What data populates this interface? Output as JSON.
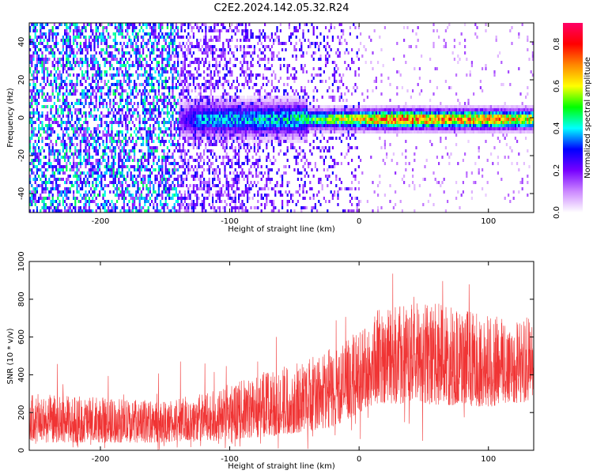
{
  "title": "C2E2.2024.142.05.32.R24",
  "colors": {
    "snr_line": "#f03434",
    "axis": "#000000",
    "colormap": [
      "#ffffff",
      "#cc88ff",
      "#7700ff",
      "#0000ff",
      "#00ffff",
      "#00ff00",
      "#ffff00",
      "#ff8800",
      "#ff0000",
      "#ff0066"
    ]
  },
  "chart_data": [
    {
      "type": "heatmap",
      "xlabel": "Height of straight line (km)",
      "ylabel": "Frequency (Hz)",
      "xlim": [
        -255,
        135
      ],
      "ylim": [
        -50,
        50
      ],
      "xticks": [
        -200,
        -100,
        0,
        100
      ],
      "yticks": [
        -40,
        -20,
        0,
        20,
        40
      ],
      "xtick_labels": [
        "-200",
        "-100",
        "0",
        "100"
      ],
      "ytick_labels": [
        "-40",
        "-20",
        "0",
        "20",
        "40"
      ],
      "colorbar": {
        "label": "Normalized spectral amplitude",
        "range": [
          0,
          0.9
        ],
        "ticks": [
          0.0,
          0.2,
          0.4,
          0.6,
          0.8
        ],
        "tick_labels": [
          "0.0",
          "0.2",
          "0.4",
          "0.6",
          "0.8"
        ]
      },
      "signal_band": {
        "center_freq": 0,
        "x_start": -140,
        "amplitude_profile": [
          {
            "x": -140,
            "a": 0.15
          },
          {
            "x": -125,
            "a": 0.35
          },
          {
            "x": -100,
            "a": 0.38
          },
          {
            "x": -60,
            "a": 0.4
          },
          {
            "x": -40,
            "a": 0.45
          },
          {
            "x": -20,
            "a": 0.55
          },
          {
            "x": 0,
            "a": 0.6
          },
          {
            "x": 20,
            "a": 0.75
          },
          {
            "x": 60,
            "a": 0.7
          },
          {
            "x": 100,
            "a": 0.7
          },
          {
            "x": 135,
            "a": 0.6
          }
        ]
      }
    },
    {
      "type": "line",
      "xlabel": "Height of straight line (km)",
      "ylabel": "SNR (10 * v/v)",
      "xlim": [
        -255,
        135
      ],
      "ylim": [
        0,
        1000
      ],
      "xticks": [
        -200,
        -100,
        0,
        100
      ],
      "yticks": [
        0,
        200,
        400,
        600,
        800,
        1000
      ],
      "xtick_labels": [
        "-200",
        "-100",
        "0",
        "100"
      ],
      "ytick_labels": [
        "0",
        "200",
        "400",
        "600",
        "800",
        "1000"
      ],
      "envelope": [
        {
          "x": -255,
          "lo": 40,
          "hi": 300
        },
        {
          "x": -200,
          "lo": 40,
          "hi": 280
        },
        {
          "x": -150,
          "lo": 40,
          "hi": 260
        },
        {
          "x": -110,
          "lo": 50,
          "hi": 320
        },
        {
          "x": -60,
          "lo": 80,
          "hi": 450
        },
        {
          "x": -20,
          "lo": 120,
          "hi": 550
        },
        {
          "x": 0,
          "lo": 200,
          "hi": 620
        },
        {
          "x": 15,
          "lo": 250,
          "hi": 760
        },
        {
          "x": 60,
          "lo": 240,
          "hi": 780
        },
        {
          "x": 100,
          "lo": 230,
          "hi": 720
        },
        {
          "x": 135,
          "lo": 260,
          "hi": 700
        }
      ]
    }
  ]
}
